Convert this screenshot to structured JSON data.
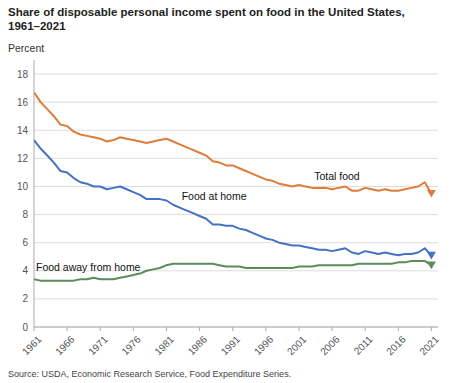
{
  "chart_data": {
    "type": "line",
    "title": "Share of disposable personal income spent on food in the United States,\n1961–2021",
    "y_label": "Percent",
    "source": "Source: USDA, Economic Research Service, Food Expenditure Series.",
    "x": [
      1961,
      1962,
      1963,
      1964,
      1965,
      1966,
      1967,
      1968,
      1969,
      1970,
      1971,
      1972,
      1973,
      1974,
      1975,
      1976,
      1977,
      1978,
      1979,
      1980,
      1981,
      1982,
      1983,
      1984,
      1985,
      1986,
      1987,
      1988,
      1989,
      1990,
      1991,
      1992,
      1993,
      1994,
      1995,
      1996,
      1997,
      1998,
      1999,
      2000,
      2001,
      2002,
      2003,
      2004,
      2005,
      2006,
      2007,
      2008,
      2009,
      2010,
      2011,
      2012,
      2013,
      2014,
      2015,
      2016,
      2017,
      2018,
      2019,
      2020,
      2021
    ],
    "series": [
      {
        "name": "Total food",
        "color": "#E07B39",
        "marker": "triangle-down",
        "values": [
          16.7,
          16.0,
          15.5,
          15.0,
          14.4,
          14.3,
          13.9,
          13.7,
          13.6,
          13.5,
          13.4,
          13.2,
          13.3,
          13.5,
          13.4,
          13.3,
          13.2,
          13.1,
          13.2,
          13.3,
          13.4,
          13.2,
          13.0,
          12.8,
          12.6,
          12.4,
          12.2,
          11.8,
          11.7,
          11.5,
          11.5,
          11.3,
          11.1,
          10.9,
          10.7,
          10.5,
          10.4,
          10.2,
          10.1,
          10.0,
          10.1,
          10.0,
          9.9,
          9.9,
          9.9,
          9.8,
          9.9,
          10.0,
          9.7,
          9.7,
          9.9,
          9.8,
          9.7,
          9.8,
          9.7,
          9.7,
          9.8,
          9.9,
          10.0,
          10.3,
          9.5
        ]
      },
      {
        "name": "Food at home",
        "color": "#4472C4",
        "marker": "triangle-down",
        "values": [
          13.3,
          12.7,
          12.2,
          11.7,
          11.1,
          11.0,
          10.6,
          10.3,
          10.2,
          10.0,
          10.0,
          9.8,
          9.9,
          10.0,
          9.8,
          9.6,
          9.4,
          9.1,
          9.1,
          9.1,
          9.0,
          8.7,
          8.5,
          8.3,
          8.1,
          7.9,
          7.7,
          7.3,
          7.3,
          7.2,
          7.2,
          7.0,
          6.9,
          6.7,
          6.5,
          6.3,
          6.2,
          6.0,
          5.9,
          5.8,
          5.8,
          5.7,
          5.6,
          5.5,
          5.5,
          5.4,
          5.5,
          5.6,
          5.3,
          5.2,
          5.4,
          5.3,
          5.2,
          5.3,
          5.2,
          5.1,
          5.2,
          5.2,
          5.3,
          5.6,
          5.1
        ]
      },
      {
        "name": "Food away from home",
        "color": "#5B8C5A",
        "marker": "triangle-down",
        "values": [
          3.4,
          3.3,
          3.3,
          3.3,
          3.3,
          3.3,
          3.3,
          3.4,
          3.4,
          3.5,
          3.4,
          3.4,
          3.4,
          3.5,
          3.6,
          3.7,
          3.8,
          4.0,
          4.1,
          4.2,
          4.4,
          4.5,
          4.5,
          4.5,
          4.5,
          4.5,
          4.5,
          4.5,
          4.4,
          4.3,
          4.3,
          4.3,
          4.2,
          4.2,
          4.2,
          4.2,
          4.2,
          4.2,
          4.2,
          4.2,
          4.3,
          4.3,
          4.3,
          4.4,
          4.4,
          4.4,
          4.4,
          4.4,
          4.4,
          4.5,
          4.5,
          4.5,
          4.5,
          4.5,
          4.5,
          4.6,
          4.6,
          4.7,
          4.7,
          4.7,
          4.4
        ]
      }
    ],
    "xlim": [
      1961,
      2022
    ],
    "xticks": [
      1961,
      1966,
      1971,
      1976,
      1981,
      1986,
      1991,
      1996,
      2001,
      2006,
      2011,
      2016,
      2021
    ],
    "ylim": [
      0,
      19
    ],
    "yticks": [
      0,
      2,
      4,
      6,
      8,
      10,
      12,
      14,
      16,
      18
    ],
    "grid": true
  }
}
